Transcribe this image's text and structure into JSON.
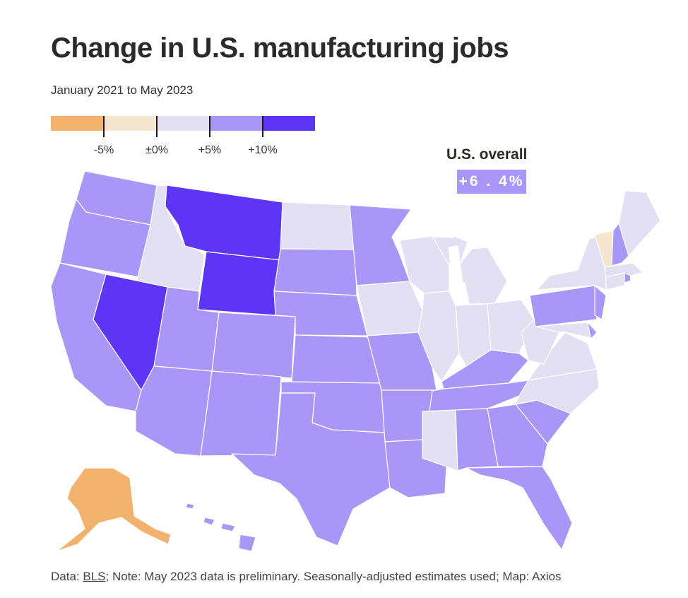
{
  "title": "Change in U.S. manufacturing jobs",
  "subtitle": "January 2021 to May 2023",
  "legend": {
    "colors": [
      "#f2b26e",
      "#f5e6cf",
      "#e3e0f4",
      "#a897f7",
      "#5c35f5"
    ],
    "labels": [
      "-5%",
      "±0%",
      "+5%",
      "+10%"
    ]
  },
  "overall": {
    "label": "U.S. overall",
    "value": "+6.4%",
    "display": "+6 . 4%"
  },
  "footer": {
    "prefix": "Data: ",
    "link": "BLS",
    "rest": "; Note: May 2023 data is preliminary. Seasonally-adjusted estimates used; Map: Axios"
  },
  "map_data": {
    "metric": "Change in manufacturing jobs, Jan 2021 to May 2023",
    "bins": [
      {
        "range": "below -5%",
        "color": "#f2b26e"
      },
      {
        "range": "-5% to 0%",
        "color": "#f5e6cf"
      },
      {
        "range": "0% to +5%",
        "color": "#e3e0f4"
      },
      {
        "range": "+5% to +10%",
        "color": "#a897f7"
      },
      {
        "range": "above +10%",
        "color": "#5c35f5"
      }
    ],
    "states": [
      {
        "id": "WA",
        "bin": 3
      },
      {
        "id": "OR",
        "bin": 3
      },
      {
        "id": "CA",
        "bin": 3
      },
      {
        "id": "ID",
        "bin": 2
      },
      {
        "id": "NV",
        "bin": 4
      },
      {
        "id": "MT",
        "bin": 4
      },
      {
        "id": "WY",
        "bin": 4
      },
      {
        "id": "UT",
        "bin": 3
      },
      {
        "id": "AZ",
        "bin": 3
      },
      {
        "id": "CO",
        "bin": 3
      },
      {
        "id": "NM",
        "bin": 3
      },
      {
        "id": "ND",
        "bin": 2
      },
      {
        "id": "SD",
        "bin": 3
      },
      {
        "id": "NE",
        "bin": 3
      },
      {
        "id": "KS",
        "bin": 3
      },
      {
        "id": "OK",
        "bin": 3
      },
      {
        "id": "TX",
        "bin": 3
      },
      {
        "id": "MN",
        "bin": 3
      },
      {
        "id": "IA",
        "bin": 2
      },
      {
        "id": "MO",
        "bin": 3
      },
      {
        "id": "AR",
        "bin": 3
      },
      {
        "id": "LA",
        "bin": 3
      },
      {
        "id": "WI",
        "bin": 2
      },
      {
        "id": "IL",
        "bin": 2
      },
      {
        "id": "MI",
        "bin": 2
      },
      {
        "id": "IN",
        "bin": 2
      },
      {
        "id": "OH",
        "bin": 2
      },
      {
        "id": "KY",
        "bin": 3
      },
      {
        "id": "TN",
        "bin": 3
      },
      {
        "id": "MS",
        "bin": 2
      },
      {
        "id": "AL",
        "bin": 3
      },
      {
        "id": "GA",
        "bin": 3
      },
      {
        "id": "FL",
        "bin": 3
      },
      {
        "id": "SC",
        "bin": 3
      },
      {
        "id": "NC",
        "bin": 2
      },
      {
        "id": "VA",
        "bin": 2
      },
      {
        "id": "WV",
        "bin": 2
      },
      {
        "id": "PA",
        "bin": 3
      },
      {
        "id": "NY",
        "bin": 2
      },
      {
        "id": "VT",
        "bin": 1
      },
      {
        "id": "NH",
        "bin": 3
      },
      {
        "id": "ME",
        "bin": 2
      },
      {
        "id": "MA",
        "bin": 2
      },
      {
        "id": "RI",
        "bin": 3
      },
      {
        "id": "CT",
        "bin": 2
      },
      {
        "id": "NJ",
        "bin": 3
      },
      {
        "id": "DE",
        "bin": 3
      },
      {
        "id": "MD",
        "bin": 2
      },
      {
        "id": "AK",
        "bin": 0
      },
      {
        "id": "HI",
        "bin": 3
      }
    ]
  }
}
